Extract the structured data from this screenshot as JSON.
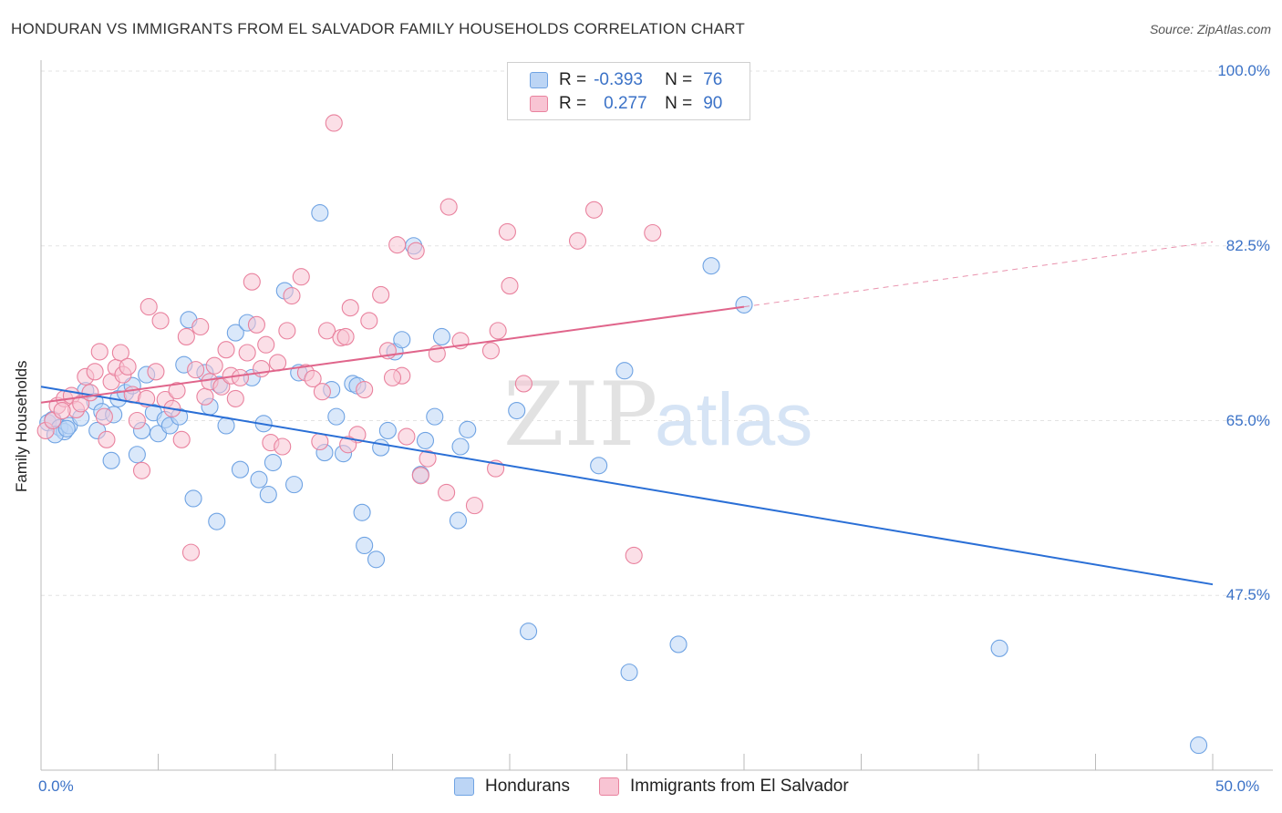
{
  "title": "HONDURAN VS IMMIGRANTS FROM EL SALVADOR FAMILY HOUSEHOLDS CORRELATION CHART",
  "source": "Source: ZipAtlas.com",
  "watermark": {
    "part1": "ZIP",
    "part2": "atlas"
  },
  "chart_data": {
    "type": "scatter",
    "title": "HONDURAN VS IMMIGRANTS FROM EL SALVADOR FAMILY HOUSEHOLDS CORRELATION CHART",
    "xlabel": "",
    "ylabel": "Family Households",
    "xlim": [
      0,
      50
    ],
    "ylim": [
      30,
      100
    ],
    "x_tick_labels": [
      "0.0%",
      "50.0%"
    ],
    "y_tick_labels": [
      "100.0%",
      "82.5%",
      "65.0%",
      "47.5%"
    ],
    "y_ticks": [
      100,
      82.5,
      65,
      47.5
    ],
    "grid": true,
    "legend": [
      {
        "name": "Hondurans",
        "r_label": "R =",
        "r": "-0.393",
        "n_label": "N =",
        "n": "76",
        "color": "#6fa3e3",
        "fill": "#bcd5f5"
      },
      {
        "name": "Immigrants from El Salvador",
        "r_label": "R =",
        "r": "0.277",
        "n_label": "N =",
        "n": "90",
        "color": "#e9829e",
        "fill": "#f8c4d3"
      }
    ],
    "series": [
      {
        "name": "Hondurans",
        "color": "#6fa3e3",
        "trend": {
          "x": [
            0,
            50
          ],
          "y": [
            68.4,
            48.6
          ],
          "style": "solid",
          "line_color": "#2a6fd6"
        },
        "points": [
          [
            0.3,
            64.8
          ],
          [
            0.5,
            65.1
          ],
          [
            0.8,
            64.3
          ],
          [
            1.0,
            63.9
          ],
          [
            1.2,
            64.5
          ],
          [
            1.7,
            65.3
          ],
          [
            1.9,
            68.0
          ],
          [
            2.3,
            66.9
          ],
          [
            2.4,
            64.0
          ],
          [
            2.6,
            65.9
          ],
          [
            3.0,
            61.0
          ],
          [
            3.1,
            65.6
          ],
          [
            3.3,
            67.2
          ],
          [
            3.6,
            67.8
          ],
          [
            3.9,
            68.5
          ],
          [
            4.1,
            61.6
          ],
          [
            4.3,
            64.0
          ],
          [
            4.5,
            69.6
          ],
          [
            4.8,
            65.8
          ],
          [
            5.0,
            63.7
          ],
          [
            5.3,
            65.1
          ],
          [
            5.5,
            64.5
          ],
          [
            5.9,
            65.4
          ],
          [
            6.1,
            70.6
          ],
          [
            6.3,
            75.1
          ],
          [
            6.5,
            57.2
          ],
          [
            7.0,
            69.8
          ],
          [
            7.2,
            66.4
          ],
          [
            7.5,
            54.9
          ],
          [
            7.6,
            68.6
          ],
          [
            7.9,
            64.5
          ],
          [
            8.3,
            73.8
          ],
          [
            8.5,
            60.1
          ],
          [
            8.8,
            74.8
          ],
          [
            9.0,
            69.3
          ],
          [
            9.3,
            59.1
          ],
          [
            9.5,
            64.7
          ],
          [
            9.7,
            57.6
          ],
          [
            9.9,
            60.8
          ],
          [
            10.4,
            78.0
          ],
          [
            10.8,
            58.6
          ],
          [
            11.0,
            69.8
          ],
          [
            11.9,
            85.8
          ],
          [
            12.1,
            61.8
          ],
          [
            12.4,
            68.1
          ],
          [
            12.6,
            65.4
          ],
          [
            12.9,
            61.7
          ],
          [
            13.3,
            68.7
          ],
          [
            13.5,
            68.5
          ],
          [
            13.7,
            55.8
          ],
          [
            13.8,
            52.5
          ],
          [
            14.3,
            51.1
          ],
          [
            14.5,
            62.3
          ],
          [
            14.8,
            64.0
          ],
          [
            15.1,
            71.9
          ],
          [
            15.4,
            73.1
          ],
          [
            15.9,
            82.5
          ],
          [
            16.2,
            59.6
          ],
          [
            16.4,
            63.0
          ],
          [
            16.8,
            65.4
          ],
          [
            17.1,
            73.4
          ],
          [
            17.9,
            62.4
          ],
          [
            18.2,
            64.1
          ],
          [
            17.8,
            55.0
          ],
          [
            20.3,
            66.0
          ],
          [
            20.8,
            43.9
          ],
          [
            23.8,
            60.5
          ],
          [
            24.9,
            70.0
          ],
          [
            25.1,
            39.8
          ],
          [
            27.2,
            42.6
          ],
          [
            28.6,
            80.5
          ],
          [
            30.0,
            76.6
          ],
          [
            40.9,
            42.2
          ],
          [
            49.4,
            32.5
          ],
          [
            0.6,
            63.6
          ],
          [
            1.1,
            64.2
          ]
        ]
      },
      {
        "name": "Immigrants from El Salvador",
        "color": "#e9829e",
        "trend": {
          "x": [
            0,
            30
          ],
          "y": [
            66.8,
            76.4
          ],
          "style": "solid",
          "dash_x": [
            30,
            50
          ],
          "dash_y": [
            76.4,
            82.9
          ],
          "line_color": "#e0658b"
        },
        "points": [
          [
            0.2,
            64.0
          ],
          [
            0.5,
            65.0
          ],
          [
            0.7,
            66.5
          ],
          [
            1.0,
            67.2
          ],
          [
            1.3,
            67.5
          ],
          [
            1.5,
            66.1
          ],
          [
            1.7,
            66.7
          ],
          [
            1.9,
            69.4
          ],
          [
            2.1,
            67.8
          ],
          [
            2.3,
            69.9
          ],
          [
            2.5,
            71.9
          ],
          [
            2.7,
            65.4
          ],
          [
            2.8,
            63.1
          ],
          [
            3.0,
            68.9
          ],
          [
            3.2,
            70.3
          ],
          [
            3.4,
            71.8
          ],
          [
            3.5,
            69.6
          ],
          [
            3.7,
            70.4
          ],
          [
            3.9,
            67.6
          ],
          [
            4.1,
            65.0
          ],
          [
            4.3,
            60.0
          ],
          [
            4.5,
            67.2
          ],
          [
            4.6,
            76.4
          ],
          [
            4.9,
            69.9
          ],
          [
            5.1,
            75.0
          ],
          [
            5.3,
            67.1
          ],
          [
            5.6,
            66.2
          ],
          [
            5.8,
            68.0
          ],
          [
            6.0,
            63.1
          ],
          [
            6.2,
            73.4
          ],
          [
            6.4,
            51.8
          ],
          [
            6.6,
            70.1
          ],
          [
            6.8,
            74.4
          ],
          [
            7.0,
            67.4
          ],
          [
            7.2,
            68.9
          ],
          [
            7.4,
            70.5
          ],
          [
            7.7,
            68.4
          ],
          [
            7.9,
            72.1
          ],
          [
            8.1,
            69.5
          ],
          [
            8.3,
            67.2
          ],
          [
            8.5,
            69.3
          ],
          [
            8.8,
            71.8
          ],
          [
            9.0,
            78.9
          ],
          [
            9.2,
            74.6
          ],
          [
            9.4,
            70.2
          ],
          [
            9.6,
            72.6
          ],
          [
            9.8,
            62.8
          ],
          [
            10.1,
            70.8
          ],
          [
            10.3,
            62.4
          ],
          [
            10.5,
            74.0
          ],
          [
            10.7,
            77.5
          ],
          [
            11.1,
            79.4
          ],
          [
            11.3,
            69.8
          ],
          [
            11.6,
            69.2
          ],
          [
            11.9,
            62.9
          ],
          [
            12.2,
            74.0
          ],
          [
            12.5,
            94.8
          ],
          [
            12.8,
            73.3
          ],
          [
            13.0,
            73.4
          ],
          [
            13.2,
            76.3
          ],
          [
            13.5,
            63.6
          ],
          [
            13.8,
            68.1
          ],
          [
            14.0,
            75.0
          ],
          [
            14.5,
            77.6
          ],
          [
            14.8,
            72.0
          ],
          [
            15.2,
            82.6
          ],
          [
            15.4,
            69.5
          ],
          [
            15.6,
            63.4
          ],
          [
            16.0,
            82.0
          ],
          [
            16.2,
            59.5
          ],
          [
            16.5,
            61.2
          ],
          [
            16.9,
            71.7
          ],
          [
            17.3,
            57.8
          ],
          [
            17.4,
            86.4
          ],
          [
            17.9,
            73.0
          ],
          [
            18.5,
            56.5
          ],
          [
            19.2,
            72.0
          ],
          [
            19.4,
            60.2
          ],
          [
            19.5,
            74.0
          ],
          [
            19.9,
            83.9
          ],
          [
            20.0,
            78.5
          ],
          [
            20.6,
            68.7
          ],
          [
            22.9,
            83.0
          ],
          [
            23.6,
            86.1
          ],
          [
            25.3,
            51.5
          ],
          [
            26.1,
            83.8
          ],
          [
            12.0,
            67.9
          ],
          [
            13.1,
            62.6
          ],
          [
            15.0,
            69.3
          ],
          [
            0.9,
            66.0
          ]
        ]
      }
    ]
  }
}
